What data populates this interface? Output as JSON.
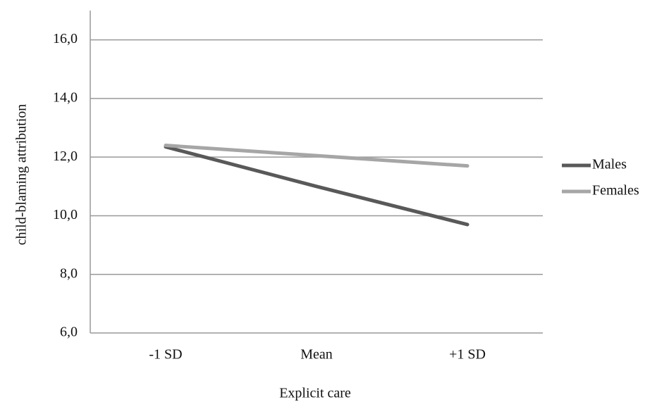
{
  "chart_data": {
    "type": "line",
    "x_label": "Explicit care",
    "y_label": "child-blaming attribution",
    "categories": [
      "-1 SD",
      "Mean",
      "+1 SD"
    ],
    "series": [
      {
        "name": "Males",
        "color": "#595959",
        "values": [
          12.35,
          11.0,
          9.7
        ]
      },
      {
        "name": "Females",
        "color": "#a6a6a6",
        "values": [
          12.4,
          12.05,
          11.7
        ]
      }
    ],
    "ylim": [
      6,
      17
    ],
    "yticks": [
      {
        "value": 6,
        "label": "6,0"
      },
      {
        "value": 8,
        "label": "8,0"
      },
      {
        "value": 10,
        "label": "10,0"
      },
      {
        "value": 12,
        "label": "12,0"
      },
      {
        "value": 14,
        "label": "14,0"
      },
      {
        "value": 16,
        "label": "16,0"
      }
    ],
    "grid": true,
    "legend": "right"
  }
}
